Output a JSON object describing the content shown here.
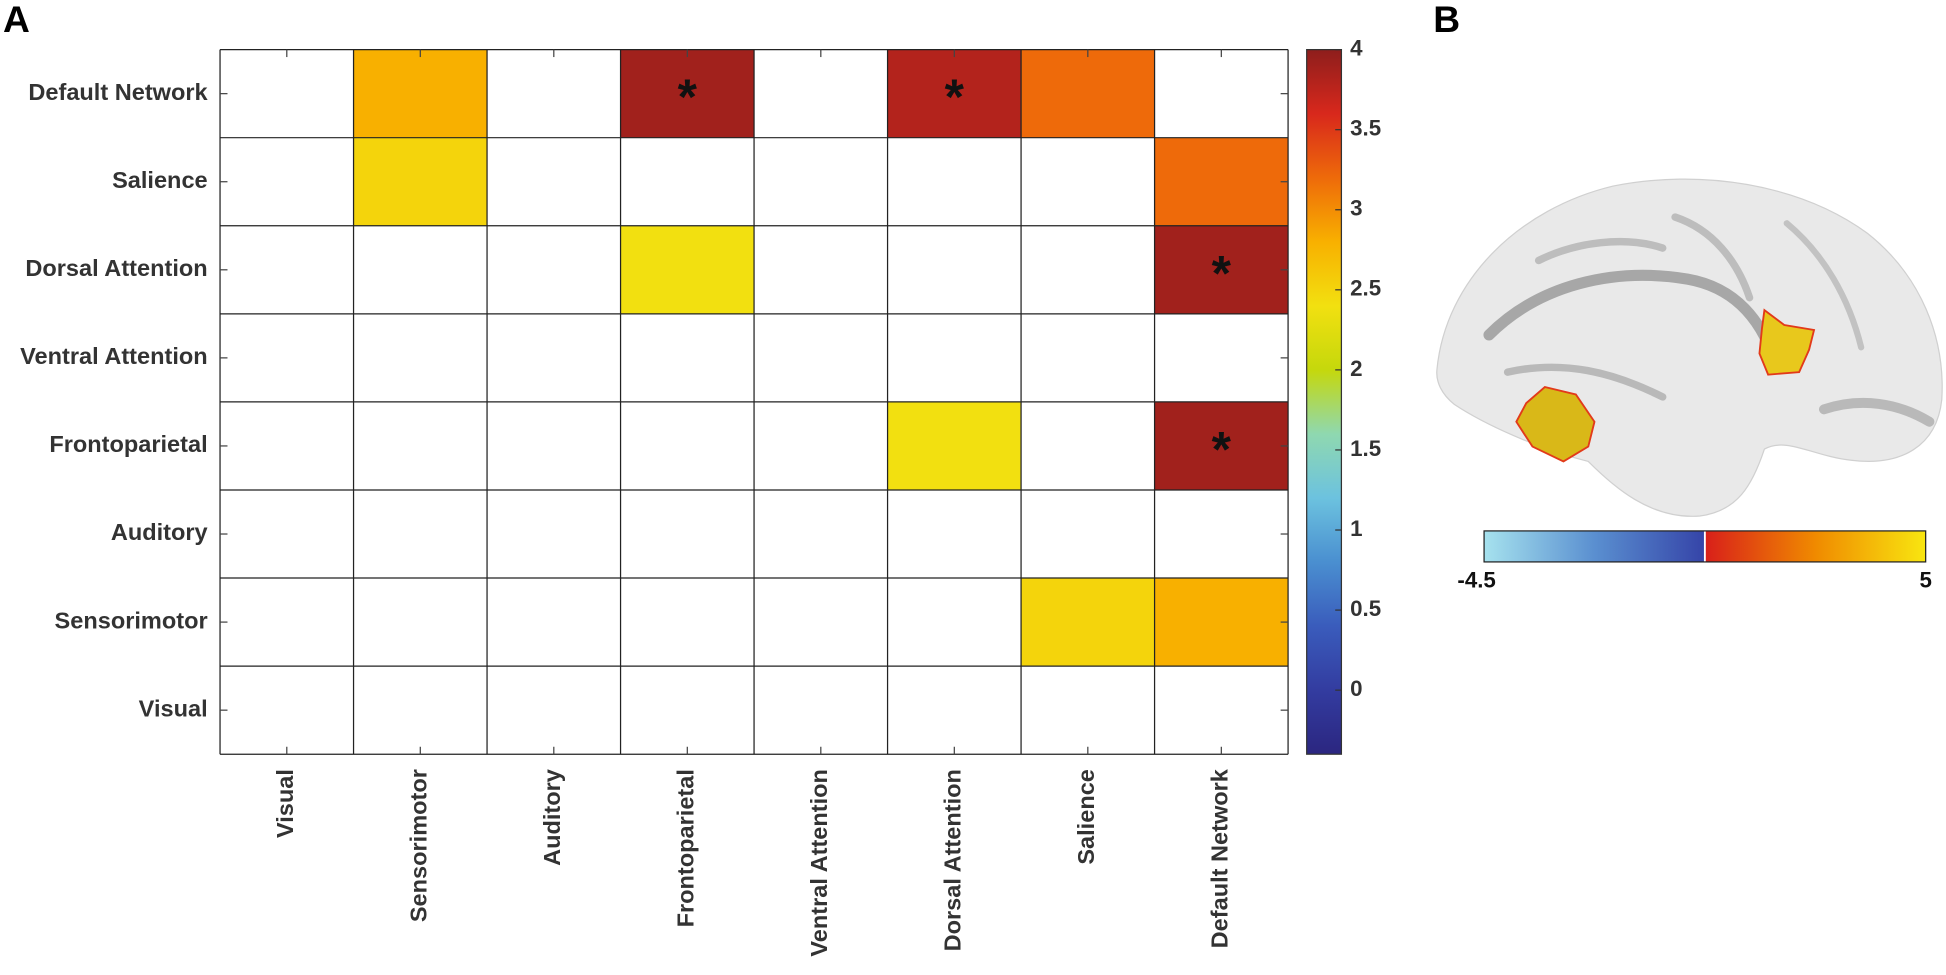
{
  "chart_data": [
    {
      "type": "heatmap",
      "panel_label": "A",
      "x_categories": [
        "Visual",
        "Sensorimotor",
        "Auditory",
        "Frontoparietal",
        "Ventral Attention",
        "Dorsal Attention",
        "Salience",
        "Default Network"
      ],
      "y_categories": [
        "Default Network",
        "Salience",
        "Dorsal Attention",
        "Ventral Attention",
        "Frontoparietal",
        "Auditory",
        "Sensorimotor",
        "Visual"
      ],
      "values": [
        [
          null,
          2.8,
          null,
          3.9,
          null,
          3.8,
          3.2,
          null
        ],
        [
          null,
          2.5,
          null,
          null,
          null,
          null,
          null,
          3.2
        ],
        [
          null,
          null,
          null,
          2.4,
          null,
          null,
          null,
          3.9
        ],
        [
          null,
          null,
          null,
          null,
          null,
          null,
          null,
          null
        ],
        [
          null,
          null,
          null,
          null,
          null,
          2.4,
          null,
          3.9
        ],
        [
          null,
          null,
          null,
          null,
          null,
          null,
          null,
          null
        ],
        [
          null,
          null,
          null,
          null,
          null,
          null,
          2.5,
          2.8
        ],
        [
          null,
          null,
          null,
          null,
          null,
          null,
          null,
          null
        ]
      ],
      "cell_labels": [
        [
          null,
          null,
          null,
          "*",
          null,
          "*",
          null,
          null
        ],
        [
          null,
          null,
          null,
          null,
          null,
          null,
          null,
          null
        ],
        [
          null,
          null,
          null,
          null,
          null,
          null,
          null,
          "*"
        ],
        [
          null,
          null,
          null,
          null,
          null,
          null,
          null,
          null
        ],
        [
          null,
          null,
          null,
          null,
          null,
          null,
          null,
          "*"
        ],
        [
          null,
          null,
          null,
          null,
          null,
          null,
          null,
          null
        ],
        [
          null,
          null,
          null,
          null,
          null,
          null,
          null,
          null
        ],
        [
          null,
          null,
          null,
          null,
          null,
          null,
          null,
          null
        ]
      ],
      "clim": [
        -0.4,
        4
      ],
      "cticks": [
        0,
        0.5,
        1,
        1.5,
        2,
        2.5,
        3,
        3.5,
        4
      ],
      "colormap": [
        "#2b2680",
        "#333ca0",
        "#3a5cbc",
        "#4a8fd0",
        "#6cc2df",
        "#8fd8b0",
        "#c5d80c",
        "#f2e010",
        "#f8b000",
        "#ee6a0a",
        "#d8281c",
        "#8e1e1c"
      ]
    },
    {
      "type": "image",
      "panel_label": "B",
      "clim": [
        -4.5,
        5
      ],
      "colormap": [
        "#a6e2ee",
        "#5a8fd0",
        "#3544a8",
        "#d81f1a",
        "#f08a00",
        "#f8e610"
      ]
    }
  ]
}
